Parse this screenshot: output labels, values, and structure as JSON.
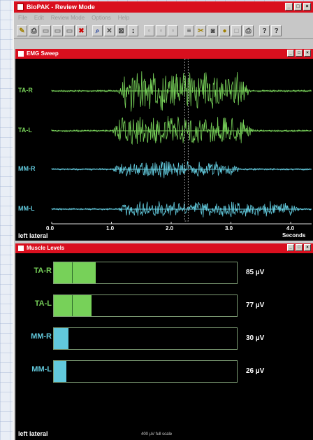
{
  "app": {
    "title": "BioPAK - Review Mode"
  },
  "window_buttons": [
    "_",
    "□",
    "×"
  ],
  "menu": [
    "File",
    "Edit",
    "Review Mode",
    "Options",
    "Help"
  ],
  "toolbar": [
    {
      "icon": "open-icon",
      "glyph": "✎",
      "color": "#a08000"
    },
    {
      "icon": "print-icon",
      "glyph": "⎙",
      "color": "#333333"
    },
    {
      "icon": "page-icon",
      "glyph": "▭",
      "color": "#777777"
    },
    {
      "icon": "page-icon-2",
      "glyph": "▭",
      "color": "#777777"
    },
    {
      "icon": "page-icon-3",
      "glyph": "▭",
      "color": "#777777"
    },
    {
      "icon": "delete-icon",
      "glyph": "✖",
      "color": "#cc0000"
    },
    {
      "icon": "zoom-icon",
      "glyph": "⌕",
      "color": "#1d3c9c"
    },
    {
      "icon": "cut-icon",
      "glyph": "✕",
      "color": "#444444"
    },
    {
      "icon": "select-icon",
      "glyph": "⊠",
      "color": "#444444"
    },
    {
      "icon": "scale-icon",
      "glyph": "↕",
      "color": "#000000"
    },
    {
      "icon": "frame-icon",
      "glyph": "▫",
      "color": "#888888"
    },
    {
      "icon": "frame-icon-2",
      "glyph": "▫",
      "color": "#888888"
    },
    {
      "icon": "frame-icon-3",
      "glyph": "▫",
      "color": "#888888"
    },
    {
      "icon": "list-icon",
      "glyph": "≡",
      "color": "#444444"
    },
    {
      "icon": "tools-icon",
      "glyph": "✂",
      "color": "#a08000"
    },
    {
      "icon": "camera-icon",
      "glyph": "◙",
      "color": "#444444"
    },
    {
      "icon": "record-icon",
      "glyph": "●",
      "color": "#a08000"
    },
    {
      "icon": "blank-icon",
      "glyph": "□",
      "color": "#888888"
    },
    {
      "icon": "printer-icon",
      "glyph": "⎙",
      "color": "#444444"
    },
    {
      "icon": "help-icon",
      "glyph": "?",
      "color": "#333333"
    },
    {
      "icon": "context-help-icon",
      "glyph": "?",
      "color": "#333333"
    }
  ],
  "emg": {
    "title": "EMG Sweep",
    "x_ticks": [
      {
        "label": "0.0",
        "value": 0
      },
      {
        "label": "1.0",
        "value": 1
      },
      {
        "label": "2.0",
        "value": 2
      },
      {
        "label": "3.0",
        "value": 3
      },
      {
        "label": "4.0",
        "value": 4
      }
    ],
    "x_unit": "Seconds",
    "corner_label": "left lateral",
    "cursor_seconds": 2.25,
    "channels": [
      {
        "name": "TA-R",
        "color": "#77d159",
        "amp": 30,
        "burst": [
          1.1,
          3.35
        ]
      },
      {
        "name": "TA-L",
        "color": "#77d159",
        "amp": 23,
        "burst": [
          1.0,
          3.4
        ]
      },
      {
        "name": "MM-R",
        "color": "#62c9dc",
        "amp": 13,
        "burst": [
          1.0,
          3.2
        ]
      },
      {
        "name": "MM-L",
        "color": "#62c9dc",
        "amp": 12,
        "burst": [
          1.1,
          4.2
        ]
      }
    ]
  },
  "levels": {
    "title": "Muscle Levels",
    "full_scale": "400 µV full scale",
    "full_scale_uv": 400,
    "corner_label": "left lateral",
    "items": [
      {
        "name": "TA-R",
        "value": "85 µV",
        "uv": 85,
        "color": "#77d159",
        "label_color": "#77d159"
      },
      {
        "name": "TA-L",
        "value": "77 µV",
        "uv": 77,
        "color": "#77d159",
        "label_color": "#77d159"
      },
      {
        "name": "MM-R",
        "value": "30 µV",
        "uv": 30,
        "color": "#62c9dc",
        "label_color": "#62c9dc"
      },
      {
        "name": "MM-L",
        "value": "26 µV",
        "uv": 26,
        "color": "#62c9dc",
        "label_color": "#62c9dc"
      }
    ]
  }
}
